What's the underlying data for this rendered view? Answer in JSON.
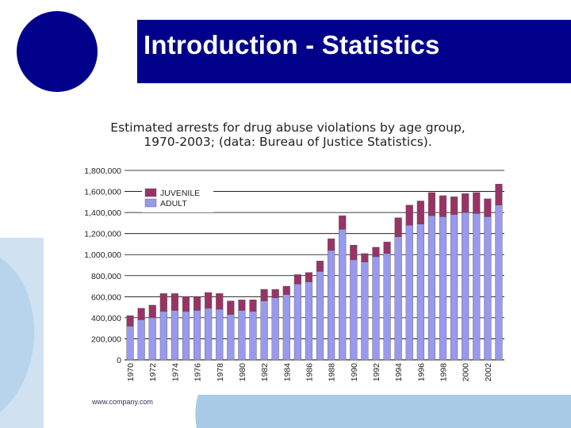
{
  "slide": {
    "title": "Introduction - Statistics",
    "footer": "www.company.com",
    "colors": {
      "title_bar": "#00008b",
      "logo": "#00008b",
      "accent_light": "#a9cbe8"
    }
  },
  "chart_data": {
    "type": "bar",
    "stacked": true,
    "title": "Estimated arrests for drug abuse violations by age group,",
    "subtitle": "1970-2003; (data: Bureau of Justice Statistics).",
    "xlabel": "",
    "ylabel": "",
    "ylim": [
      0,
      1800000
    ],
    "yticks": [
      "0",
      "200,000",
      "400,000",
      "600,000",
      "800,000",
      "1,000,000",
      "1,200,000",
      "1,400,000",
      "1,600,000",
      "1,800,000"
    ],
    "grid": true,
    "legend": "top-left",
    "categories": [
      "1970",
      "1971",
      "1972",
      "1973",
      "1974",
      "1975",
      "1976",
      "1977",
      "1978",
      "1979",
      "1980",
      "1981",
      "1982",
      "1983",
      "1984",
      "1985",
      "1986",
      "1987",
      "1988",
      "1989",
      "1990",
      "1991",
      "1992",
      "1993",
      "1994",
      "1995",
      "1996",
      "1997",
      "1998",
      "1999",
      "2000",
      "2001",
      "2002",
      "2003"
    ],
    "xtick_labels": [
      "1970",
      "1972",
      "1974",
      "1976",
      "1978",
      "1980",
      "1982",
      "1984",
      "1986",
      "1988",
      "1990",
      "1992",
      "1994",
      "1996",
      "1998",
      "2000",
      "2002"
    ],
    "series": [
      {
        "name": "ADULT",
        "color": "#9999f0",
        "values": [
          320000,
          380000,
          400000,
          460000,
          470000,
          460000,
          470000,
          490000,
          480000,
          430000,
          470000,
          460000,
          560000,
          590000,
          620000,
          720000,
          740000,
          840000,
          1040000,
          1240000,
          950000,
          930000,
          980000,
          1010000,
          1170000,
          1280000,
          1290000,
          1370000,
          1360000,
          1380000,
          1400000,
          1390000,
          1360000,
          1470000
        ]
      },
      {
        "name": "JUVENILE",
        "color": "#993366",
        "values": [
          100000,
          110000,
          120000,
          170000,
          160000,
          140000,
          130000,
          150000,
          150000,
          130000,
          100000,
          110000,
          110000,
          80000,
          80000,
          90000,
          90000,
          100000,
          110000,
          130000,
          140000,
          80000,
          90000,
          110000,
          180000,
          190000,
          220000,
          220000,
          200000,
          170000,
          180000,
          200000,
          170000,
          200000
        ]
      }
    ]
  }
}
